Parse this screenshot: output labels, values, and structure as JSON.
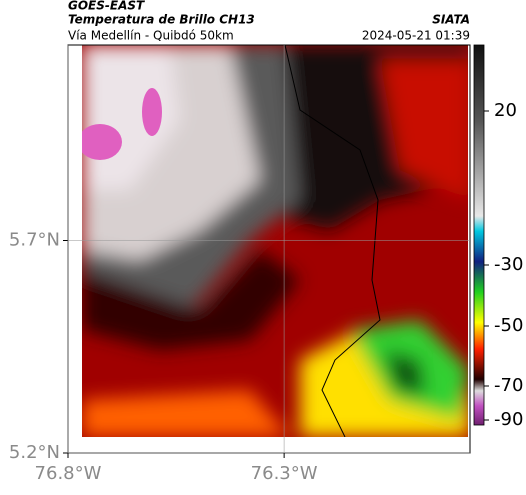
{
  "header": {
    "source": "GOES-EAST",
    "title": "Temperatura de Brillo CH13",
    "subtitle": "Vía Medellín - Quibdó 50km",
    "brand": "SIATA",
    "timestamp": "2024-05-21 01:39"
  },
  "map": {
    "lat_lim": [
      5.2,
      6.16
    ],
    "lon_lim": [
      -76.8,
      -75.87
    ],
    "lat_ticks": [
      {
        "value": 5.7,
        "label": "5.7°N"
      },
      {
        "value": 5.2,
        "label": "5.2°N"
      }
    ],
    "lon_ticks": [
      {
        "value": -76.8,
        "label": "76.8°W"
      },
      {
        "value": -76.3,
        "label": "76.3°W"
      }
    ]
  },
  "colorbar": {
    "ticks": [
      20,
      -30,
      -50,
      -70,
      -90
    ]
  }
}
